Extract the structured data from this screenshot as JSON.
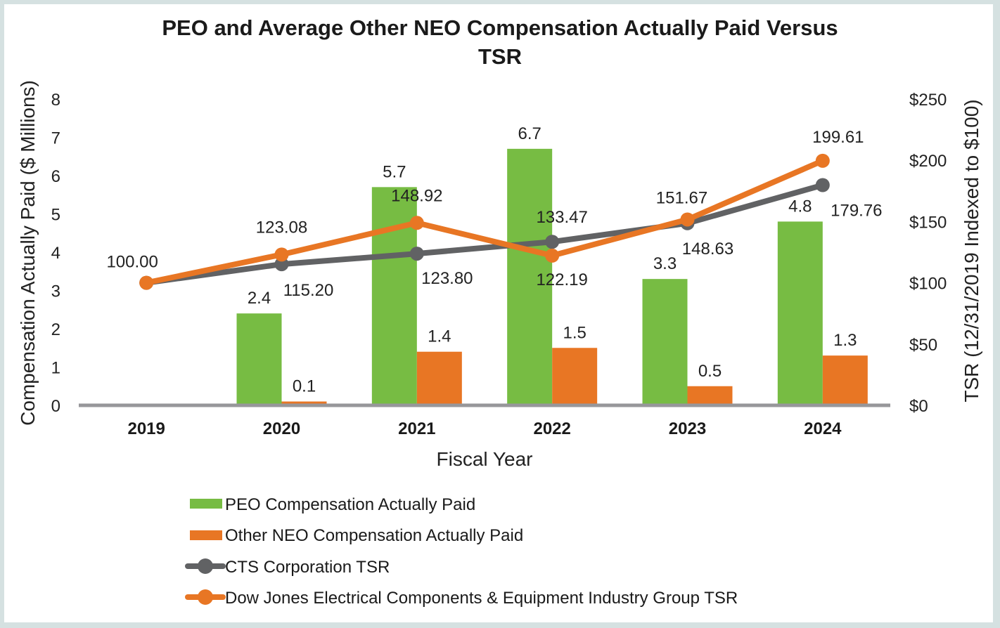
{
  "colors": {
    "peo": "#77bc43",
    "neo": "#e87624",
    "cts": "#616264",
    "dj": "#e87624",
    "baseline": "#97979a",
    "frame": "#d5e1e1"
  },
  "chart_data": {
    "type": "bar",
    "title_lines": [
      "PEO and Average Other NEO Compensation Actually Paid Versus",
      "TSR"
    ],
    "xlabel": "Fiscal Year",
    "ylabel": "Compensation Actually Paid ($ Millions)",
    "y2label": "TSR (12/31/2019 Indexed to $100)",
    "categories": [
      "2019",
      "2020",
      "2021",
      "2022",
      "2023",
      "2024"
    ],
    "ylim": [
      0,
      8
    ],
    "yticks": [
      "0",
      "1",
      "2",
      "3",
      "4",
      "5",
      "6",
      "7",
      "8"
    ],
    "y2lim": [
      0,
      250
    ],
    "y2ticks": [
      "$0",
      "$50",
      "$100",
      "$150",
      "$200",
      "$250"
    ],
    "grid": false,
    "legend_position": "bottom",
    "bar_series": [
      {
        "name": "PEO Compensation Actually Paid",
        "key": "peo",
        "values": [
          null,
          2.4,
          5.7,
          6.7,
          3.3,
          4.8
        ],
        "labels": [
          "",
          "2.4",
          "5.7",
          "6.7",
          "3.3",
          "4.8"
        ]
      },
      {
        "name": "Other NEO Compensation Actually Paid",
        "key": "neo",
        "values": [
          null,
          0.1,
          1.4,
          1.5,
          0.5,
          1.3
        ],
        "labels": [
          "",
          "0.1",
          "1.4",
          "1.5",
          "0.5",
          "1.3"
        ]
      }
    ],
    "line_series": [
      {
        "name": "CTS Corporation TSR",
        "key": "cts",
        "axis": "right",
        "values": [
          100.0,
          115.2,
          123.8,
          133.47,
          148.63,
          179.76
        ],
        "labels": [
          "",
          "115.20",
          "123.80",
          "133.47",
          "148.63",
          "179.76"
        ]
      },
      {
        "name": "Dow Jones Electrical Components & Equipment Industry Group TSR",
        "key": "dj",
        "axis": "right",
        "values": [
          100.0,
          123.08,
          148.92,
          122.19,
          151.67,
          199.61
        ],
        "labels": [
          "100.00",
          "123.08",
          "148.92",
          "122.19",
          "151.67",
          "199.61"
        ]
      }
    ]
  }
}
